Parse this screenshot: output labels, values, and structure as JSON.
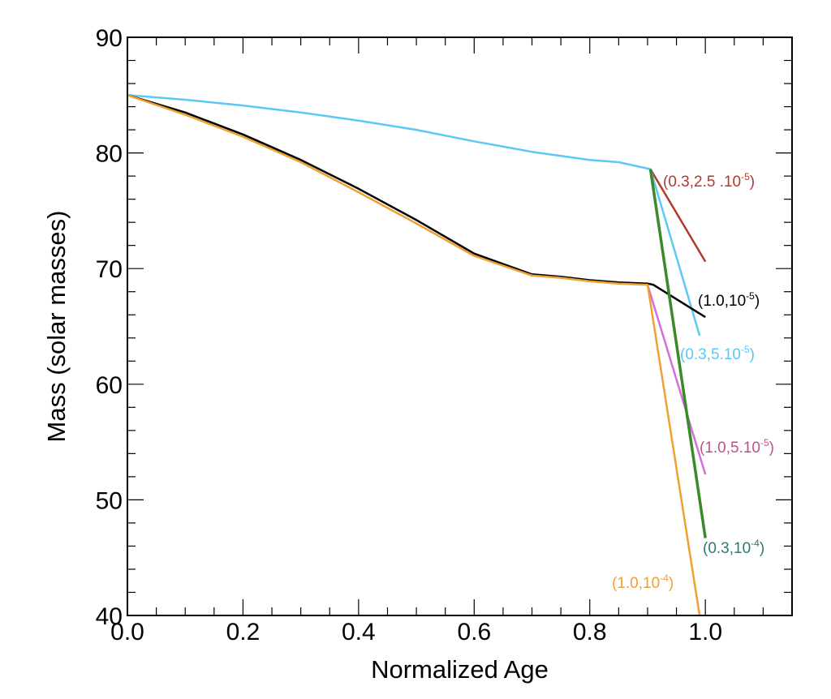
{
  "chart_data": {
    "type": "line",
    "xlabel": "Normalized Age",
    "ylabel": "Mass (solar masses)",
    "xlim": [
      0.0,
      1.15
    ],
    "ylim": [
      40,
      90
    ],
    "x_ticks": [
      0.0,
      0.2,
      0.4,
      0.6,
      0.8,
      1.0
    ],
    "x_tick_labels": [
      "0.0",
      "0.2",
      "0.4",
      "0.6",
      "0.8",
      "1.0"
    ],
    "y_ticks": [
      40,
      50,
      60,
      70,
      80,
      90
    ],
    "y_tick_labels": [
      "40",
      "50",
      "60",
      "70",
      "80",
      "90"
    ],
    "x_minor_step": 0.05,
    "y_minor_step": 2,
    "grid": false,
    "legend": "inline labels at line ends",
    "series": [
      {
        "name": "(0.3,2.5 .10-5)",
        "label_parts": [
          "(0.3,2.5 .10",
          "-5",
          ")"
        ],
        "color": "#b03a2e",
        "x": [
          0.905,
          1.0
        ],
        "y": [
          78.6,
          70.6
        ]
      },
      {
        "name": "(0.3,5.10-5)",
        "label_parts": [
          "(0.3,5.10",
          "-5",
          ")"
        ],
        "color": "#5bc8f5",
        "x": [
          0.0,
          0.1,
          0.2,
          0.3,
          0.4,
          0.5,
          0.6,
          0.7,
          0.8,
          0.85,
          0.905,
          0.95,
          0.99
        ],
        "y": [
          85.0,
          84.6,
          84.1,
          83.5,
          82.8,
          82.0,
          81.0,
          80.1,
          79.4,
          79.2,
          78.6,
          71.0,
          64.2
        ]
      },
      {
        "name": "(1.0,10-5)",
        "label_parts": [
          "(1.0,10",
          "-5",
          ")"
        ],
        "color": "#000000",
        "x": [
          0.0,
          0.1,
          0.2,
          0.3,
          0.4,
          0.5,
          0.6,
          0.7,
          0.75,
          0.8,
          0.85,
          0.9,
          0.91,
          1.0
        ],
        "y": [
          85.0,
          83.5,
          81.6,
          79.4,
          76.9,
          74.2,
          71.3,
          69.5,
          69.3,
          69.0,
          68.8,
          68.7,
          68.6,
          65.8
        ]
      },
      {
        "name": "(1.0,5.10-5)",
        "label_parts": [
          "(1.0,5.10",
          "-5",
          ")"
        ],
        "color": "#d070d8",
        "x": [
          0.9,
          1.0
        ],
        "y": [
          68.6,
          52.2
        ]
      },
      {
        "name": "(0.3,10-4)",
        "label_parts": [
          "(0.3,10",
          "-4",
          ")"
        ],
        "color": "#3a8a2a",
        "x": [
          0.905,
          1.0
        ],
        "y": [
          78.6,
          46.7
        ]
      },
      {
        "name": "(1.0,10-4)",
        "label_parts": [
          "(1.0,10",
          "-4",
          ")"
        ],
        "color": "#f0a030",
        "x": [
          0.0,
          0.1,
          0.2,
          0.3,
          0.4,
          0.5,
          0.6,
          0.7,
          0.75,
          0.8,
          0.85,
          0.9,
          0.99
        ],
        "y": [
          85.0,
          83.3,
          81.4,
          79.2,
          76.6,
          73.9,
          71.1,
          69.4,
          69.2,
          68.9,
          68.7,
          68.6,
          40.0
        ]
      }
    ],
    "label_colors": {
      "(0.3,2.5 .10-5)": "#b03a2e",
      "(1.0,10-5)": "#000000",
      "(0.3,5.10-5)": "#5bc8f5",
      "(1.0,5.10-5)": "#c0508a",
      "(0.3,10-4)": "#2a7a70",
      "(1.0,10-4)": "#f0a030"
    }
  }
}
